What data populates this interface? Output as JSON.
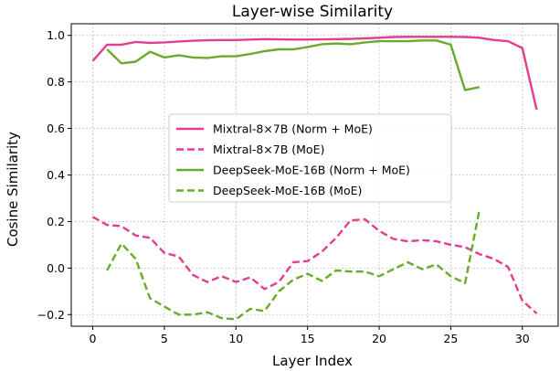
{
  "chart_data": {
    "type": "line",
    "title": "Layer-wise Similarity",
    "xlabel": "Layer Index",
    "ylabel": "Cosine Similarity",
    "xlim": [
      -1.5,
      32.5
    ],
    "ylim": [
      -0.25,
      1.05
    ],
    "grid": true,
    "legend_position": "center",
    "x_ticks": [
      0,
      5,
      10,
      15,
      20,
      25,
      30
    ],
    "x_tick_labels": [
      "0",
      "5",
      "10",
      "15",
      "20",
      "25",
      "30"
    ],
    "y_ticks": [
      -0.2,
      0.0,
      0.2,
      0.4,
      0.6,
      0.8,
      1.0
    ],
    "y_tick_labels": [
      "−0.2",
      "0.0",
      "0.2",
      "0.4",
      "0.6",
      "0.8",
      "1.0"
    ],
    "series": [
      {
        "name": "Mixtral-8×7B (Norm + MoE)",
        "color": "#e33d8e",
        "style": "solid",
        "x": [
          0,
          1,
          2,
          3,
          4,
          5,
          6,
          7,
          8,
          9,
          10,
          11,
          12,
          13,
          14,
          15,
          16,
          17,
          18,
          19,
          20,
          21,
          22,
          23,
          24,
          25,
          26,
          27,
          28,
          29,
          30,
          31
        ],
        "values": [
          0.89,
          0.96,
          0.96,
          0.972,
          0.968,
          0.97,
          0.974,
          0.977,
          0.979,
          0.98,
          0.98,
          0.982,
          0.984,
          0.983,
          0.982,
          0.982,
          0.983,
          0.984,
          0.985,
          0.987,
          0.99,
          0.993,
          0.994,
          0.994,
          0.994,
          0.994,
          0.993,
          0.99,
          0.98,
          0.975,
          0.945,
          0.68
        ]
      },
      {
        "name": "Mixtral-8×7B (MoE)",
        "color": "#e33d8e",
        "style": "dashed",
        "x": [
          0,
          1,
          2,
          3,
          4,
          5,
          6,
          7,
          8,
          9,
          10,
          11,
          12,
          13,
          14,
          15,
          16,
          17,
          18,
          19,
          20,
          21,
          22,
          23,
          24,
          25,
          26,
          27,
          28,
          29,
          30,
          31
        ],
        "values": [
          0.22,
          0.185,
          0.18,
          0.14,
          0.13,
          0.065,
          0.05,
          -0.03,
          -0.06,
          -0.035,
          -0.06,
          -0.04,
          -0.09,
          -0.06,
          0.025,
          0.03,
          0.07,
          0.13,
          0.205,
          0.21,
          0.16,
          0.125,
          0.115,
          0.12,
          0.115,
          0.1,
          0.09,
          0.06,
          0.04,
          0.005,
          -0.14,
          -0.195
        ]
      },
      {
        "name": "DeepSeek-MoE-16B (Norm + MoE)",
        "color": "#6aaa2a",
        "style": "solid",
        "x": [
          1,
          2,
          3,
          4,
          5,
          6,
          7,
          8,
          9,
          10,
          11,
          12,
          13,
          14,
          15,
          16,
          17,
          18,
          19,
          20,
          21,
          22,
          23,
          24,
          25,
          26,
          27
        ],
        "values": [
          0.94,
          0.88,
          0.887,
          0.93,
          0.905,
          0.915,
          0.905,
          0.903,
          0.91,
          0.91,
          0.92,
          0.932,
          0.94,
          0.94,
          0.95,
          0.962,
          0.965,
          0.962,
          0.97,
          0.975,
          0.975,
          0.975,
          0.978,
          0.978,
          0.96,
          0.765,
          0.778
        ]
      },
      {
        "name": "DeepSeek-MoE-16B (MoE)",
        "color": "#6aaa2a",
        "style": "dashed",
        "x": [
          1,
          2,
          3,
          4,
          5,
          6,
          7,
          8,
          9,
          10,
          11,
          12,
          13,
          14,
          15,
          16,
          17,
          18,
          19,
          20,
          21,
          22,
          23,
          24,
          25,
          26,
          27
        ],
        "values": [
          -0.01,
          0.105,
          0.04,
          -0.13,
          -0.165,
          -0.2,
          -0.2,
          -0.19,
          -0.215,
          -0.22,
          -0.175,
          -0.185,
          -0.1,
          -0.05,
          -0.025,
          -0.055,
          -0.01,
          -0.015,
          -0.015,
          -0.035,
          -0.005,
          0.025,
          -0.005,
          0.015,
          -0.035,
          -0.065,
          0.25
        ]
      }
    ]
  }
}
